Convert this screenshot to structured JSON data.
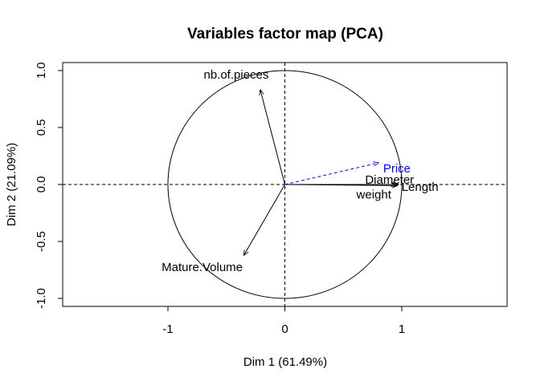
{
  "chart_data": {
    "type": "scatter",
    "title": "Variables factor map (PCA)",
    "xlabel": "Dim 1 (61.49%)",
    "ylabel": "Dim 2 (21.09%)",
    "xlim": [
      -1.9,
      1.9
    ],
    "ylim": [
      -1.07,
      1.07
    ],
    "x_ticks": [
      -1,
      0,
      1
    ],
    "x_tick_labels": [
      "-1",
      "0",
      "1"
    ],
    "y_ticks": [
      -1.0,
      -0.5,
      0.0,
      0.5,
      1.0
    ],
    "y_tick_labels": [
      "-1.0",
      "-0.5",
      "0.0",
      "0.5",
      "1.0"
    ],
    "grid": false,
    "correlation_circle": true,
    "reference_lines": {
      "x": 0,
      "y": 0,
      "style": "dashed"
    },
    "variables": [
      {
        "name": "nb.of.pieces",
        "x": -0.21,
        "y": 0.83,
        "color": "#000000",
        "supplementary": false
      },
      {
        "name": "Mature.Volume",
        "x": -0.35,
        "y": -0.62,
        "color": "#000000",
        "supplementary": false
      },
      {
        "name": "Diameter",
        "x": 0.95,
        "y": 0.0,
        "color": "#000000",
        "supplementary": false
      },
      {
        "name": "weight",
        "x": 0.96,
        "y": -0.01,
        "color": "#000000",
        "supplementary": false
      },
      {
        "name": "Length",
        "x": 0.97,
        "y": 0.0,
        "color": "#000000",
        "supplementary": false
      },
      {
        "name": "Price",
        "x": 0.8,
        "y": 0.19,
        "color": "#0000ff",
        "supplementary": true
      }
    ]
  }
}
